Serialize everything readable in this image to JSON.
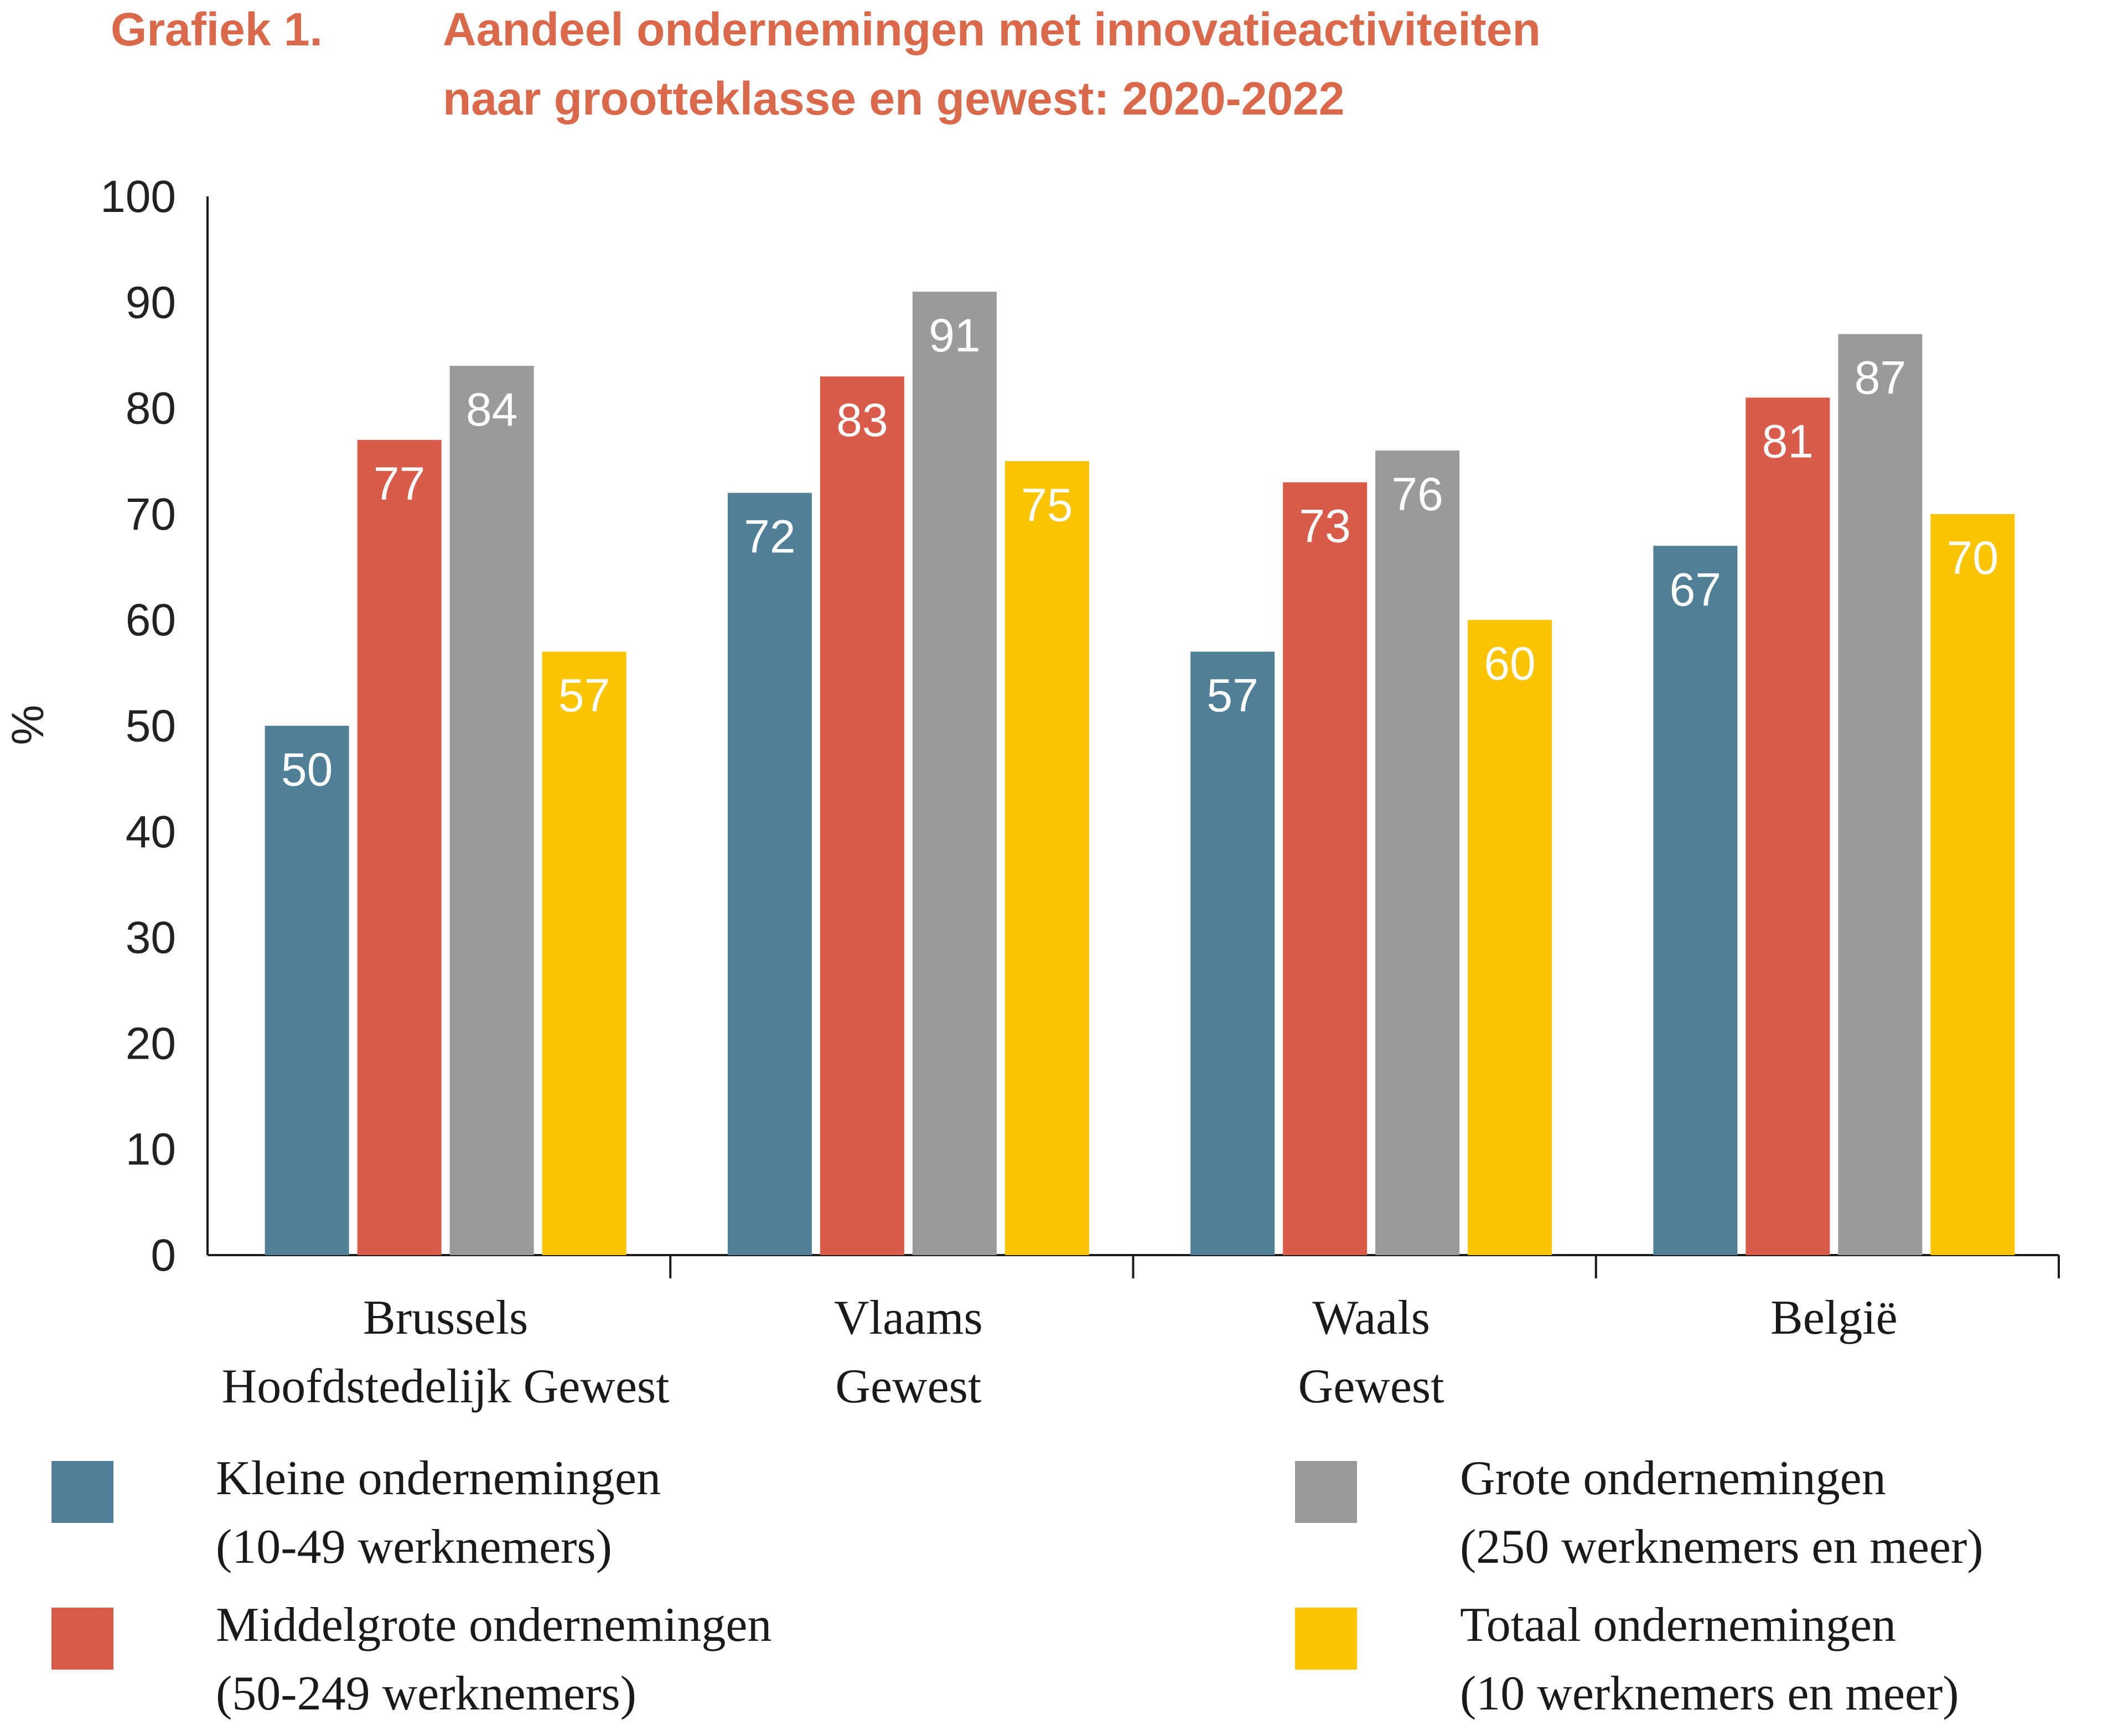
{
  "title": {
    "label": "Grafiek 1.",
    "line1": "Aandeel ondernemingen met innovatieactiviteiten",
    "line2": "naar grootteklasse en gewest: 2020-2022"
  },
  "chart_data": {
    "type": "bar",
    "title": "Aandeel ondernemingen met innovatieactiviteiten naar grootteklasse en gewest: 2020-2022",
    "ylabel": "%",
    "xlabel": "",
    "ylim": [
      0,
      100
    ],
    "yticks": [
      "0",
      "10",
      "20",
      "30",
      "40",
      "50",
      "60",
      "70",
      "80",
      "90",
      "100"
    ],
    "grid": false,
    "legend_position": "bottom",
    "categories": [
      [
        "Brussels",
        "Hoofdstedelijk Gewest"
      ],
      [
        "Vlaams",
        "Gewest"
      ],
      [
        "Waals",
        "Gewest"
      ],
      [
        "België"
      ]
    ],
    "series": [
      {
        "name": [
          "Kleine ondernemingen",
          "(10-49 werknemers)"
        ],
        "color": "#4f8097",
        "values": [
          50,
          72,
          57,
          67
        ]
      },
      {
        "name": [
          "Middelgrote ondernemingen",
          "(50-249 werknemers)"
        ],
        "color": "#d95b4a",
        "values": [
          77,
          83,
          73,
          81
        ]
      },
      {
        "name": [
          "Grote ondernemingen",
          "(250 werknemers en meer)"
        ],
        "color": "#9a9a9a",
        "values": [
          84,
          91,
          76,
          87
        ]
      },
      {
        "name": [
          "Totaal ondernemingen",
          "(10 werknemers en meer)"
        ],
        "color": "#fbc400",
        "values": [
          57,
          75,
          60,
          70
        ]
      }
    ]
  }
}
